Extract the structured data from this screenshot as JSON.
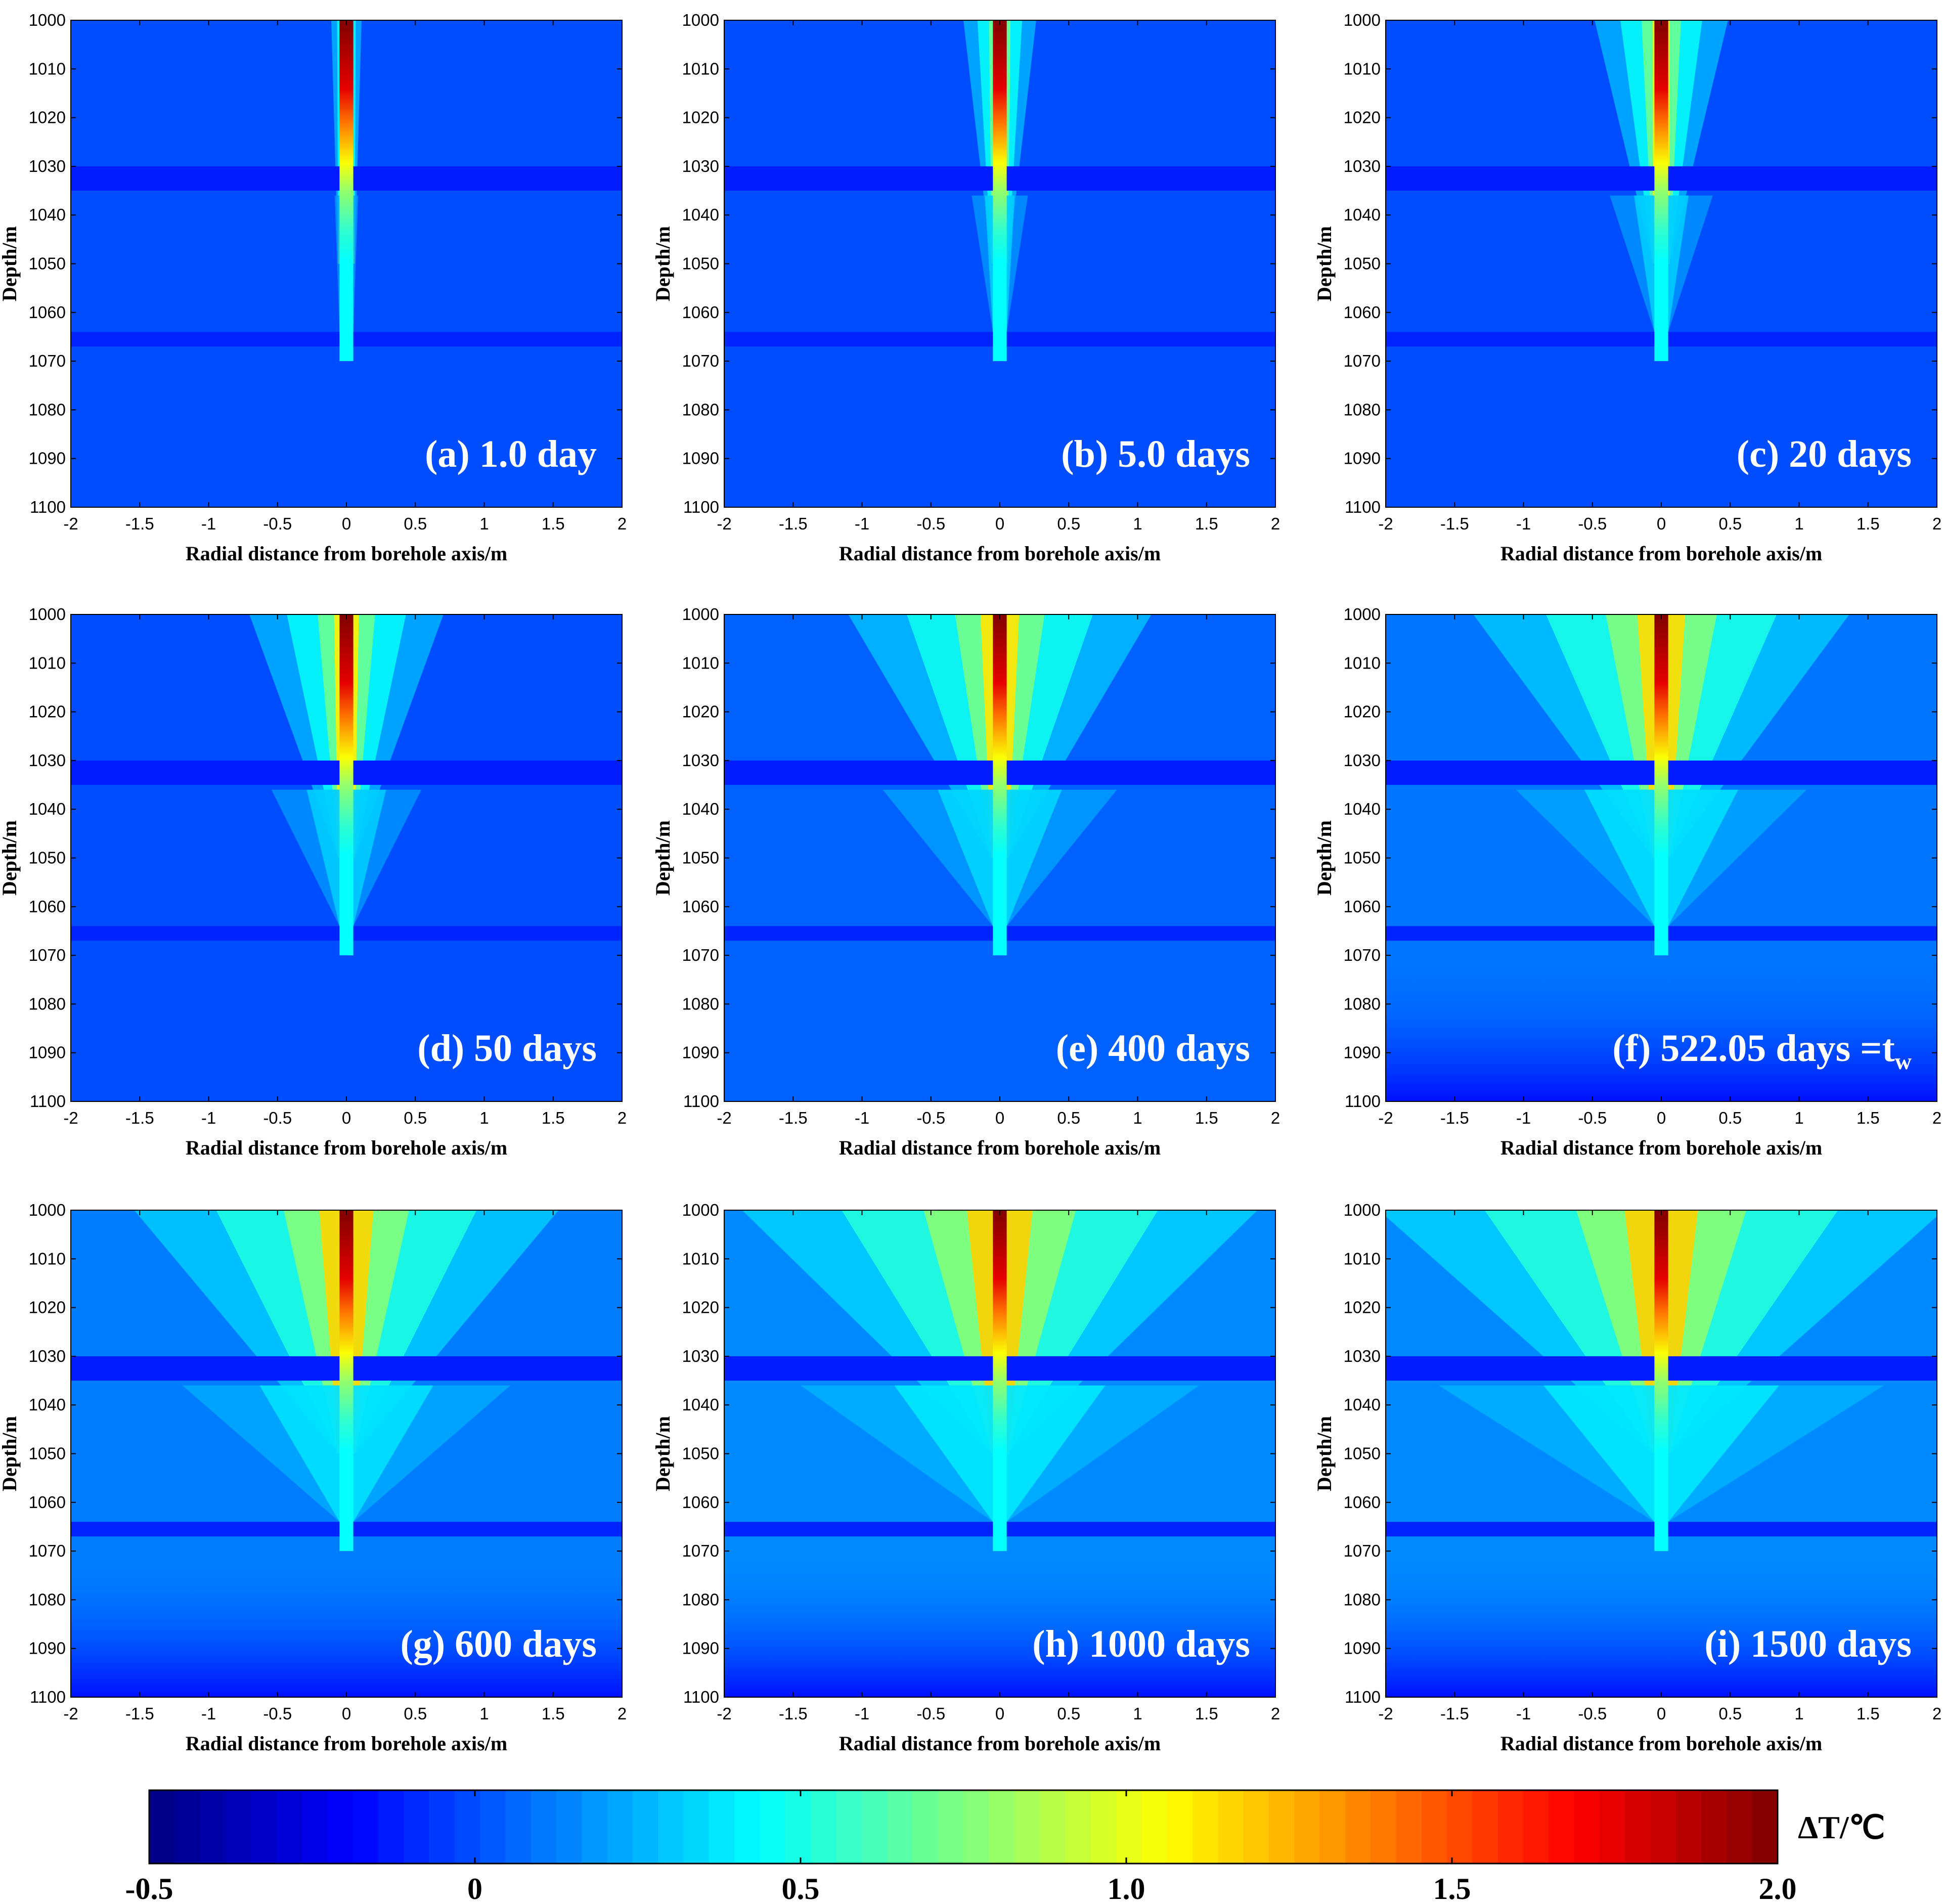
{
  "figure": {
    "colorbar": {
      "label": "ΔT/℃",
      "min": -0.5,
      "max": 2.0,
      "tick_labels": [
        "-0.5",
        "0",
        "0.5",
        "1.0",
        "1.5",
        "2.0"
      ],
      "tick_values": [
        -0.5,
        0,
        0.5,
        1.0,
        1.5,
        2.0
      ],
      "colormap": "jet"
    }
  },
  "chart_data": [
    {
      "type": "heatmap",
      "panel": "a",
      "label": "(a) 1.0 day",
      "time_days": 1.0,
      "xlabel": "Radial distance from borehole axis/m",
      "ylabel": "Depth/m",
      "xlim": [
        -2,
        2
      ],
      "ylim": [
        1100,
        1000
      ],
      "xticks": [
        "-2",
        "-1.5",
        "-1",
        "-0.5",
        "0",
        "0.5",
        "1",
        "1.5",
        "2"
      ],
      "yticks": [
        "1000",
        "1010",
        "1020",
        "1030",
        "1040",
        "1050",
        "1060",
        "1070",
        "1080",
        "1090",
        "1100"
      ],
      "core_dT": 2.0,
      "plume_spread": 0.05,
      "background_dT": 0.0
    },
    {
      "type": "heatmap",
      "panel": "b",
      "label": "(b) 5.0 days",
      "time_days": 5.0,
      "xlabel": "Radial distance from borehole axis/m",
      "ylabel": "Depth/m",
      "xlim": [
        -2,
        2
      ],
      "ylim": [
        1100,
        1000
      ],
      "xticks": [
        "-2",
        "-1.5",
        "-1",
        "-0.5",
        "0",
        "0.5",
        "1",
        "1.5",
        "2"
      ],
      "yticks": [
        "1000",
        "1010",
        "1020",
        "1030",
        "1040",
        "1050",
        "1060",
        "1070",
        "1080",
        "1090",
        "1100"
      ],
      "core_dT": 2.0,
      "plume_spread": 0.12,
      "background_dT": 0.0
    },
    {
      "type": "heatmap",
      "panel": "c",
      "label": "(c) 20 days",
      "time_days": 20,
      "xlabel": "Radial distance from borehole axis/m",
      "ylabel": "Depth/m",
      "xlim": [
        -2,
        2
      ],
      "ylim": [
        1100,
        1000
      ],
      "xticks": [
        "-2",
        "-1.5",
        "-1",
        "-0.5",
        "0",
        "0.5",
        "1",
        "1.5",
        "2"
      ],
      "yticks": [
        "1000",
        "1010",
        "1020",
        "1030",
        "1040",
        "1050",
        "1060",
        "1070",
        "1080",
        "1090",
        "1100"
      ],
      "core_dT": 2.0,
      "plume_spread": 0.22,
      "background_dT": 0.0
    },
    {
      "type": "heatmap",
      "panel": "d",
      "label": "(d) 50 days",
      "time_days": 50,
      "xlabel": "Radial distance from borehole axis/m",
      "ylabel": "Depth/m",
      "xlim": [
        -2,
        2
      ],
      "ylim": [
        1100,
        1000
      ],
      "xticks": [
        "-2",
        "-1.5",
        "-1",
        "-0.5",
        "0",
        "0.5",
        "1",
        "1.5",
        "2"
      ],
      "yticks": [
        "1000",
        "1010",
        "1020",
        "1030",
        "1040",
        "1050",
        "1060",
        "1070",
        "1080",
        "1090",
        "1100"
      ],
      "core_dT": 2.0,
      "plume_spread": 0.32,
      "background_dT": 0.0
    },
    {
      "type": "heatmap",
      "panel": "e",
      "label": "(e) 400 days",
      "time_days": 400,
      "xlabel": "Radial distance from borehole axis/m",
      "ylabel": "Depth/m",
      "xlim": [
        -2,
        2
      ],
      "ylim": [
        1100,
        1000
      ],
      "xticks": [
        "-2",
        "-1.5",
        "-1",
        "-0.5",
        "0",
        "0.5",
        "1",
        "1.5",
        "2"
      ],
      "yticks": [
        "1000",
        "1010",
        "1020",
        "1030",
        "1040",
        "1050",
        "1060",
        "1070",
        "1080",
        "1090",
        "1100"
      ],
      "core_dT": 2.0,
      "plume_spread": 0.5,
      "background_dT": 0.05
    },
    {
      "type": "heatmap",
      "panel": "f",
      "label": "(f) 522.05 days =t",
      "label_subscript": "w",
      "time_days": 522.05,
      "xlabel": "Radial distance from borehole axis/m",
      "ylabel": "Depth/m",
      "xlim": [
        -2,
        2
      ],
      "ylim": [
        1100,
        1000
      ],
      "xticks": [
        "-2",
        "-1.5",
        "-1",
        "-0.5",
        "0",
        "0.5",
        "1",
        "1.5",
        "2"
      ],
      "yticks": [
        "1000",
        "1010",
        "1020",
        "1030",
        "1040",
        "1050",
        "1060",
        "1070",
        "1080",
        "1090",
        "1100"
      ],
      "core_dT": 2.0,
      "plume_spread": 0.62,
      "background_dT": 0.1
    },
    {
      "type": "heatmap",
      "panel": "g",
      "label": "(g) 600 days",
      "time_days": 600,
      "xlabel": "Radial distance from borehole axis/m",
      "ylabel": "Depth/m",
      "xlim": [
        -2,
        2
      ],
      "ylim": [
        1100,
        1000
      ],
      "xticks": [
        "-2",
        "-1.5",
        "-1",
        "-0.5",
        "0",
        "0.5",
        "1",
        "1.5",
        "2"
      ],
      "yticks": [
        "1000",
        "1010",
        "1020",
        "1030",
        "1040",
        "1050",
        "1060",
        "1070",
        "1080",
        "1090",
        "1100"
      ],
      "core_dT": 2.0,
      "plume_spread": 0.7,
      "background_dT": 0.12
    },
    {
      "type": "heatmap",
      "panel": "h",
      "label": "(h) 1000 days",
      "time_days": 1000,
      "xlabel": "Radial distance from borehole axis/m",
      "ylabel": "Depth/m",
      "xlim": [
        -2,
        2
      ],
      "ylim": [
        1100,
        1000
      ],
      "xticks": [
        "-2",
        "-1.5",
        "-1",
        "-0.5",
        "0",
        "0.5",
        "1",
        "1.5",
        "2"
      ],
      "yticks": [
        "1000",
        "1010",
        "1020",
        "1030",
        "1040",
        "1050",
        "1060",
        "1070",
        "1080",
        "1090",
        "1100"
      ],
      "core_dT": 2.0,
      "plume_spread": 0.85,
      "background_dT": 0.15
    },
    {
      "type": "heatmap",
      "panel": "i",
      "label": "(i) 1500 days",
      "time_days": 1500,
      "xlabel": "Radial distance from borehole axis/m",
      "ylabel": "Depth/m",
      "xlim": [
        -2,
        2
      ],
      "ylim": [
        1100,
        1000
      ],
      "xticks": [
        "-2",
        "-1.5",
        "-1",
        "-0.5",
        "0",
        "0.5",
        "1",
        "1.5",
        "2"
      ],
      "yticks": [
        "1000",
        "1010",
        "1020",
        "1030",
        "1040",
        "1050",
        "1060",
        "1070",
        "1080",
        "1090",
        "1100"
      ],
      "core_dT": 2.0,
      "plume_spread": 0.95,
      "background_dT": 0.15
    }
  ]
}
